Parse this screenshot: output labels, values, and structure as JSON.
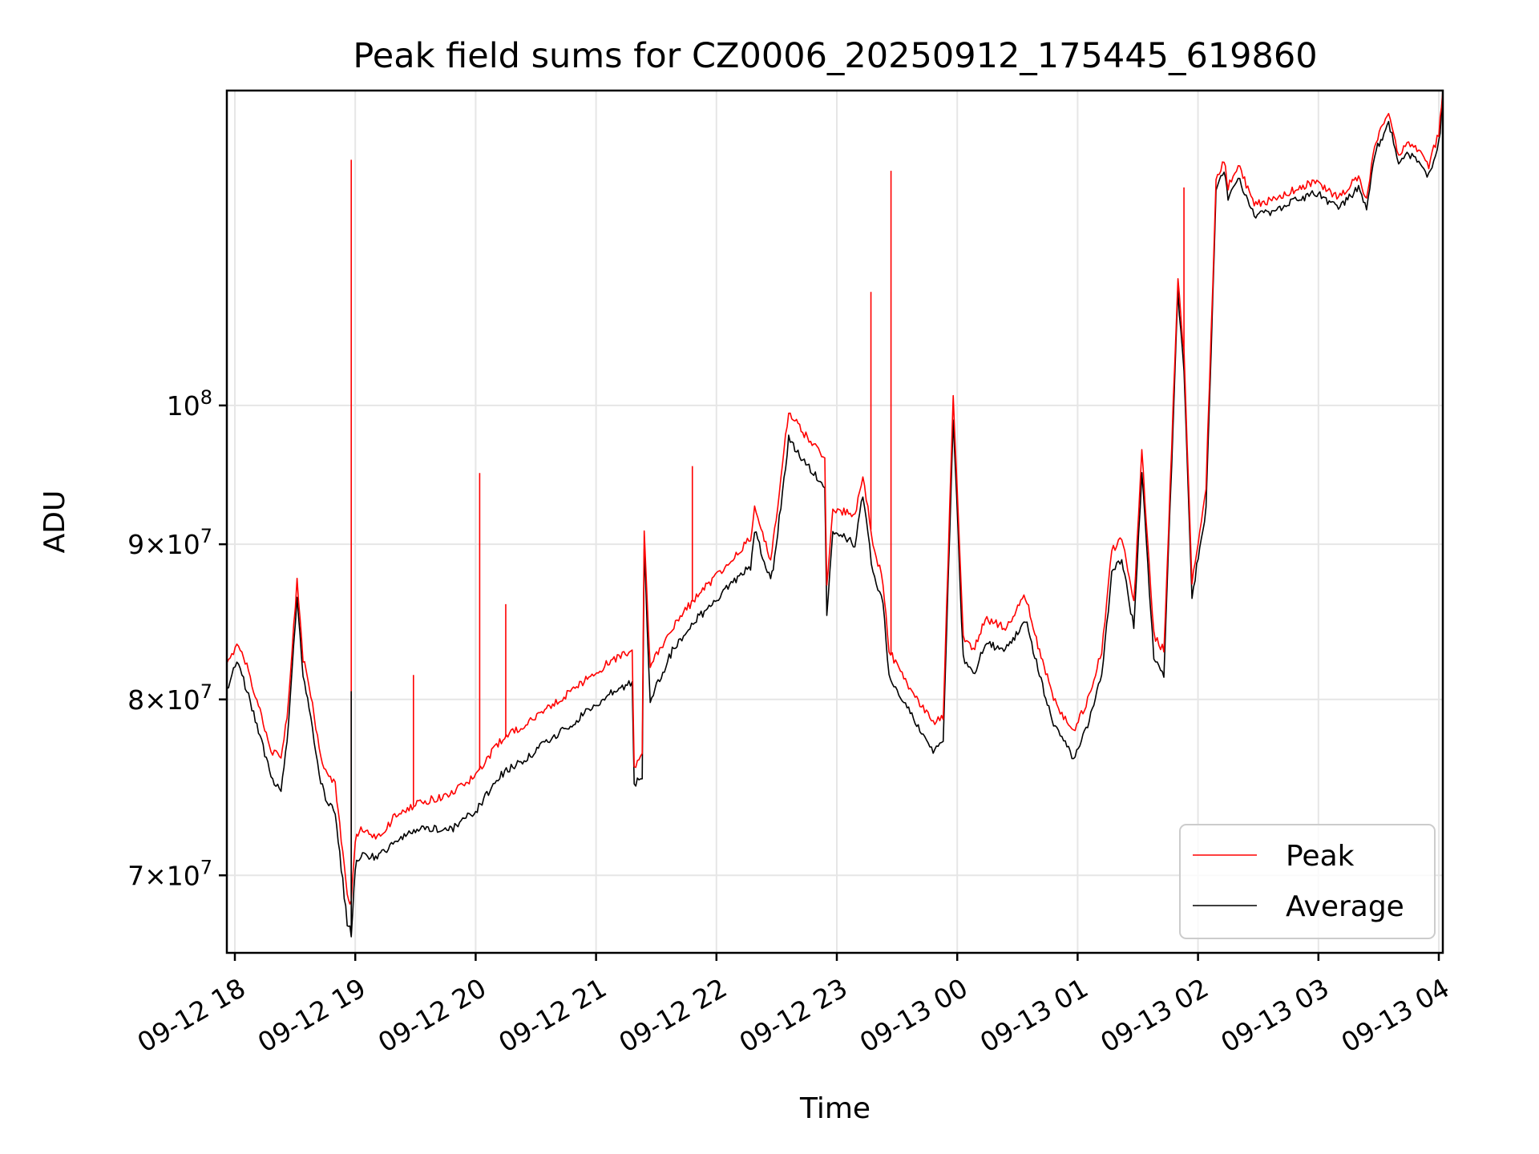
{
  "chart_data": {
    "type": "line",
    "title": "Peak field sums for CZ0006_20250912_175445_619860",
    "xlabel": "Time",
    "ylabel": "ADU",
    "yscale": "log",
    "ylim": [
      66000000,
      127000000
    ],
    "xlim": [
      "2025-09-12 17:56",
      "2025-09-13 04:02"
    ],
    "grid": true,
    "legend_position": "lower right",
    "x_ticks": [
      "09-12 18",
      "09-12 19",
      "09-12 20",
      "09-12 21",
      "09-12 22",
      "09-12 23",
      "09-13 00",
      "09-13 01",
      "09-13 02",
      "09-13 03",
      "09-13 04"
    ],
    "x_tick_values": [
      "2025-09-12 18:00",
      "2025-09-12 19:00",
      "2025-09-12 20:00",
      "2025-09-12 21:00",
      "2025-09-12 22:00",
      "2025-09-12 23:00",
      "2025-09-13 00:00",
      "2025-09-13 01:00",
      "2025-09-13 02:00",
      "2025-09-13 03:00",
      "2025-09-13 04:00"
    ],
    "y_ticks": [
      {
        "value": 70000000,
        "mant": "7",
        "exp": "7"
      },
      {
        "value": 80000000,
        "mant": "8",
        "exp": "7"
      },
      {
        "value": 90000000,
        "mant": "9",
        "exp": "7"
      },
      {
        "value": 100000000,
        "mant": "",
        "exp": "8"
      }
    ],
    "x": [
      "2025-09-12 17:56",
      "2025-09-12 18:01",
      "2025-09-12 18:06",
      "2025-09-12 18:11",
      "2025-09-12 18:18",
      "2025-09-12 18:23",
      "2025-09-12 18:26",
      "2025-09-12 18:31",
      "2025-09-12 18:34",
      "2025-09-12 18:37",
      "2025-09-12 18:42",
      "2025-09-12 18:46",
      "2025-09-12 18:50",
      "2025-09-12 18:56",
      "2025-09-12 18:58",
      "2025-09-12 19:00",
      "2025-09-12 19:02",
      "2025-09-12 19:11",
      "2025-09-12 19:22",
      "2025-09-12 19:34",
      "2025-09-12 19:48",
      "2025-09-12 20:00",
      "2025-09-12 20:12",
      "2025-09-12 20:25",
      "2025-09-12 20:36",
      "2025-09-12 20:48",
      "2025-09-12 20:58",
      "2025-09-12 21:09",
      "2025-09-12 21:18",
      "2025-09-12 21:19",
      "2025-09-12 21:23",
      "2025-09-12 21:24",
      "2025-09-12 21:27",
      "2025-09-12 21:38",
      "2025-09-12 21:50",
      "2025-09-12 22:05",
      "2025-09-12 22:17",
      "2025-09-12 22:19",
      "2025-09-12 22:27",
      "2025-09-12 22:29",
      "2025-09-12 22:36",
      "2025-09-12 22:43",
      "2025-09-12 22:54",
      "2025-09-12 22:55",
      "2025-09-12 22:58",
      "2025-09-12 23:09",
      "2025-09-12 23:13",
      "2025-09-12 23:18",
      "2025-09-12 23:23",
      "2025-09-12 23:26",
      "2025-09-12 23:35",
      "2025-09-12 23:43",
      "2025-09-12 23:48",
      "2025-09-12 23:53",
      "2025-09-12 23:58",
      "2025-09-13 00:03",
      "2025-09-13 00:08",
      "2025-09-13 00:14",
      "2025-09-13 00:24",
      "2025-09-13 00:34",
      "2025-09-13 00:41",
      "2025-09-13 00:48",
      "2025-09-13 00:53",
      "2025-09-13 00:58",
      "2025-09-13 01:05",
      "2025-09-13 01:12",
      "2025-09-13 01:17",
      "2025-09-13 01:22",
      "2025-09-13 01:28",
      "2025-09-13 01:32",
      "2025-09-13 01:38",
      "2025-09-13 01:43",
      "2025-09-13 01:50",
      "2025-09-13 01:53",
      "2025-09-13 01:57",
      "2025-09-13 02:04",
      "2025-09-13 02:09",
      "2025-09-13 02:13",
      "2025-09-13 02:15",
      "2025-09-13 02:20",
      "2025-09-13 02:28",
      "2025-09-13 02:40",
      "2025-09-13 02:50",
      "2025-09-13 03:00",
      "2025-09-13 03:10",
      "2025-09-13 03:20",
      "2025-09-13 03:24",
      "2025-09-13 03:28",
      "2025-09-13 03:35",
      "2025-09-13 03:40",
      "2025-09-13 03:45",
      "2025-09-13 03:50",
      "2025-09-13 03:55",
      "2025-09-13 04:00",
      "2025-09-13 04:02"
    ],
    "series": [
      {
        "name": "Peak",
        "color": "#ff0000",
        "values": [
          82000000,
          83500000,
          82000000,
          80000000,
          77000000,
          76500000,
          79000000,
          87500000,
          82500000,
          81000000,
          77000000,
          75500000,
          75000000,
          69000000,
          68500000,
          72000000,
          72500000,
          72000000,
          73500000,
          74000000,
          74500000,
          75500000,
          77500000,
          78500000,
          79500000,
          80500000,
          81500000,
          82500000,
          83000000,
          76000000,
          77000000,
          91000000,
          82000000,
          84500000,
          86500000,
          88500000,
          90500000,
          92500000,
          89000000,
          91000000,
          99500000,
          98000000,
          96000000,
          87000000,
          92500000,
          92000000,
          95000000,
          90000000,
          87500000,
          83000000,
          81000000,
          79500000,
          78500000,
          79000000,
          100500000,
          84000000,
          83000000,
          85000000,
          84500000,
          86500000,
          83000000,
          80000000,
          79000000,
          78000000,
          80000000,
          83000000,
          89500000,
          90500000,
          86000000,
          96500000,
          84000000,
          83000000,
          110000000,
          104000000,
          87500000,
          94000000,
          118500000,
          120500000,
          118000000,
          120000000,
          116500000,
          117000000,
          118000000,
          118500000,
          117000000,
          119000000,
          117000000,
          122000000,
          125000000,
          121000000,
          122000000,
          121500000,
          120000000,
          123000000,
          127000000
        ]
      },
      {
        "name": "Average",
        "color": "#000000",
        "values": [
          80500000,
          82500000,
          80500000,
          78500000,
          75500000,
          74500000,
          77500000,
          86500000,
          81500000,
          79500000,
          75500000,
          74000000,
          73500000,
          67500000,
          67000000,
          70500000,
          71000000,
          71000000,
          72000000,
          72500000,
          72500000,
          73500000,
          75500000,
          76500000,
          77500000,
          78500000,
          79500000,
          80500000,
          81000000,
          75000000,
          75500000,
          89500000,
          80000000,
          83000000,
          85000000,
          87000000,
          88500000,
          91000000,
          87500000,
          89000000,
          97500000,
          96000000,
          94000000,
          85500000,
          91000000,
          90000000,
          93500000,
          88000000,
          86000000,
          81500000,
          79500000,
          78000000,
          77000000,
          77500000,
          99000000,
          82500000,
          81500000,
          83500000,
          83000000,
          85000000,
          81500000,
          78500000,
          77500000,
          76500000,
          78500000,
          81500000,
          88000000,
          89000000,
          84500000,
          95000000,
          82500000,
          81500000,
          109000000,
          102500000,
          86500000,
          92500000,
          117500000,
          119500000,
          117000000,
          119000000,
          115500000,
          116000000,
          117000000,
          117500000,
          116000000,
          118000000,
          116000000,
          121000000,
          124000000,
          120000000,
          121000000,
          120500000,
          119000000,
          122000000,
          126000000
        ]
      }
    ],
    "spikes": [
      {
        "series": "Peak",
        "x": "2025-09-12 18:58",
        "value": 120500000
      },
      {
        "series": "Average",
        "x": "2025-09-12 18:58",
        "value": 80500000
      },
      {
        "series": "Peak",
        "x": "2025-09-12 19:29",
        "value": 81500000
      },
      {
        "series": "Peak",
        "x": "2025-09-12 20:02",
        "value": 95000000
      },
      {
        "series": "Peak",
        "x": "2025-09-12 20:15",
        "value": 86000000
      },
      {
        "series": "Peak",
        "x": "2025-09-12 21:48",
        "value": 95500000
      },
      {
        "series": "Peak",
        "x": "2025-09-12 23:17",
        "value": 109000000
      },
      {
        "series": "Peak",
        "x": "2025-09-12 23:27",
        "value": 119500000
      },
      {
        "series": "Peak",
        "x": "2025-09-13 01:53",
        "value": 118000000
      }
    ]
  }
}
